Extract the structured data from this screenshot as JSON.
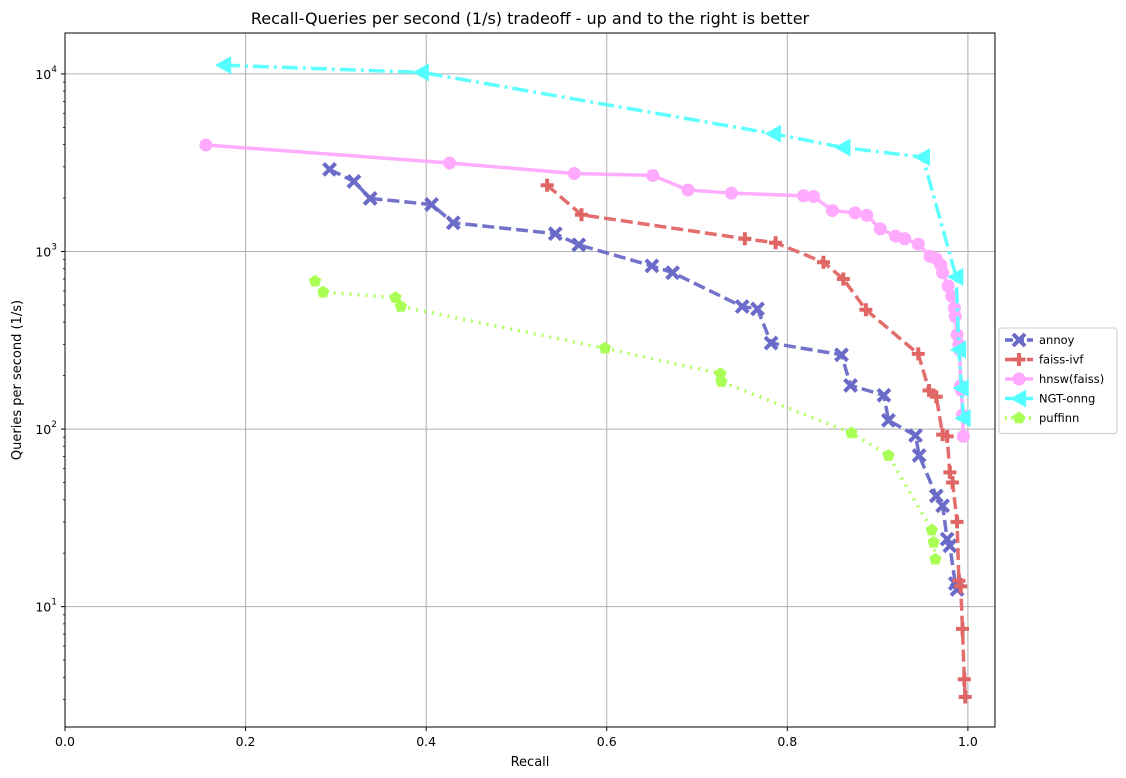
{
  "chart_data": {
    "type": "line",
    "title": "Recall-Queries per second (1/s) tradeoff - up and to the right is better",
    "xlabel": "Recall",
    "ylabel": "Queries per second (1/s)",
    "xlim": [
      0.0,
      1.03
    ],
    "ylim": [
      2.1,
      17000
    ],
    "yscale": "log",
    "grid": true,
    "legend_position": "outside-right",
    "x_ticks": [
      {
        "v": 0.0,
        "label": "0.0"
      },
      {
        "v": 0.2,
        "label": "0.2"
      },
      {
        "v": 0.4,
        "label": "0.4"
      },
      {
        "v": 0.6,
        "label": "0.6"
      },
      {
        "v": 0.8,
        "label": "0.8"
      },
      {
        "v": 1.0,
        "label": "1.0"
      }
    ],
    "y_ticks": [
      {
        "v": 10,
        "base": "10",
        "exp": "1"
      },
      {
        "v": 100,
        "base": "10",
        "exp": "2"
      },
      {
        "v": 1000,
        "base": "10",
        "exp": "3"
      },
      {
        "v": 10000,
        "base": "10",
        "exp": "4"
      }
    ],
    "series": [
      {
        "name": "annoy",
        "color": "#6a6ac8",
        "dash": "dashed",
        "marker": "x",
        "points": [
          [
            0.293,
            2900
          ],
          [
            0.32,
            2480
          ],
          [
            0.338,
            1990
          ],
          [
            0.406,
            1840
          ],
          [
            0.43,
            1450
          ],
          [
            0.543,
            1260
          ],
          [
            0.569,
            1090
          ],
          [
            0.65,
            830
          ],
          [
            0.673,
            760
          ],
          [
            0.75,
            490
          ],
          [
            0.767,
            475
          ],
          [
            0.782,
            305
          ],
          [
            0.86,
            262
          ],
          [
            0.87,
            176
          ],
          [
            0.907,
            155
          ],
          [
            0.912,
            112
          ],
          [
            0.942,
            92
          ],
          [
            0.946,
            71
          ],
          [
            0.965,
            42
          ],
          [
            0.972,
            37
          ],
          [
            0.977,
            24
          ],
          [
            0.98,
            22
          ],
          [
            0.986,
            13.5
          ],
          [
            0.988,
            12.5
          ]
        ]
      },
      {
        "name": "faiss-ivf",
        "color": "#e06666",
        "dash": "dashed",
        "marker": "plus",
        "points": [
          [
            0.534,
            2360
          ],
          [
            0.572,
            1610
          ],
          [
            0.753,
            1180
          ],
          [
            0.787,
            1120
          ],
          [
            0.84,
            870
          ],
          [
            0.862,
            700
          ],
          [
            0.887,
            470
          ],
          [
            0.945,
            265
          ],
          [
            0.957,
            165
          ],
          [
            0.965,
            152
          ],
          [
            0.972,
            93
          ],
          [
            0.977,
            91
          ],
          [
            0.98,
            57
          ],
          [
            0.983,
            50
          ],
          [
            0.988,
            30
          ],
          [
            0.99,
            14
          ],
          [
            0.992,
            13
          ],
          [
            0.994,
            7.5
          ],
          [
            0.996,
            3.9
          ],
          [
            0.997,
            3.1
          ]
        ]
      },
      {
        "name": "hnsw(faiss)",
        "color": "#ffaaff",
        "dash": "solid",
        "marker": "circle",
        "points": [
          [
            0.156,
            3980
          ],
          [
            0.426,
            3150
          ],
          [
            0.564,
            2750
          ],
          [
            0.651,
            2680
          ],
          [
            0.69,
            2220
          ],
          [
            0.738,
            2130
          ],
          [
            0.818,
            2060
          ],
          [
            0.829,
            2040
          ],
          [
            0.85,
            1700
          ],
          [
            0.875,
            1650
          ],
          [
            0.888,
            1600
          ],
          [
            0.903,
            1340
          ],
          [
            0.92,
            1220
          ],
          [
            0.93,
            1180
          ],
          [
            0.945,
            1100
          ],
          [
            0.958,
            940
          ],
          [
            0.965,
            910
          ],
          [
            0.97,
            840
          ],
          [
            0.972,
            760
          ],
          [
            0.978,
            640
          ],
          [
            0.982,
            560
          ],
          [
            0.985,
            480
          ],
          [
            0.986,
            430
          ],
          [
            0.988,
            340
          ],
          [
            0.99,
            300
          ],
          [
            0.991,
            280
          ],
          [
            0.992,
            175
          ],
          [
            0.993,
            165
          ],
          [
            0.994,
            120
          ],
          [
            0.995,
            91
          ]
        ]
      },
      {
        "name": "NGT-onng",
        "color": "#55ffff",
        "dash": "dashdot",
        "marker": "triangle-left",
        "points": [
          [
            0.176,
            11200
          ],
          [
            0.395,
            10200
          ],
          [
            0.785,
            4600
          ],
          [
            0.862,
            3850
          ],
          [
            0.95,
            3400
          ],
          [
            0.987,
            720
          ],
          [
            0.99,
            280
          ],
          [
            0.993,
            170
          ],
          [
            0.995,
            115
          ]
        ]
      },
      {
        "name": "puffinn",
        "color": "#aaff55",
        "dash": "dotted",
        "marker": "pentagon",
        "points": [
          [
            0.277,
            680
          ],
          [
            0.286,
            590
          ],
          [
            0.366,
            550
          ],
          [
            0.372,
            490
          ],
          [
            0.598,
            285
          ],
          [
            0.726,
            205
          ],
          [
            0.727,
            185
          ],
          [
            0.871,
            95
          ],
          [
            0.912,
            71
          ],
          [
            0.96,
            27
          ],
          [
            0.962,
            23
          ],
          [
            0.964,
            18.5
          ]
        ]
      }
    ]
  }
}
